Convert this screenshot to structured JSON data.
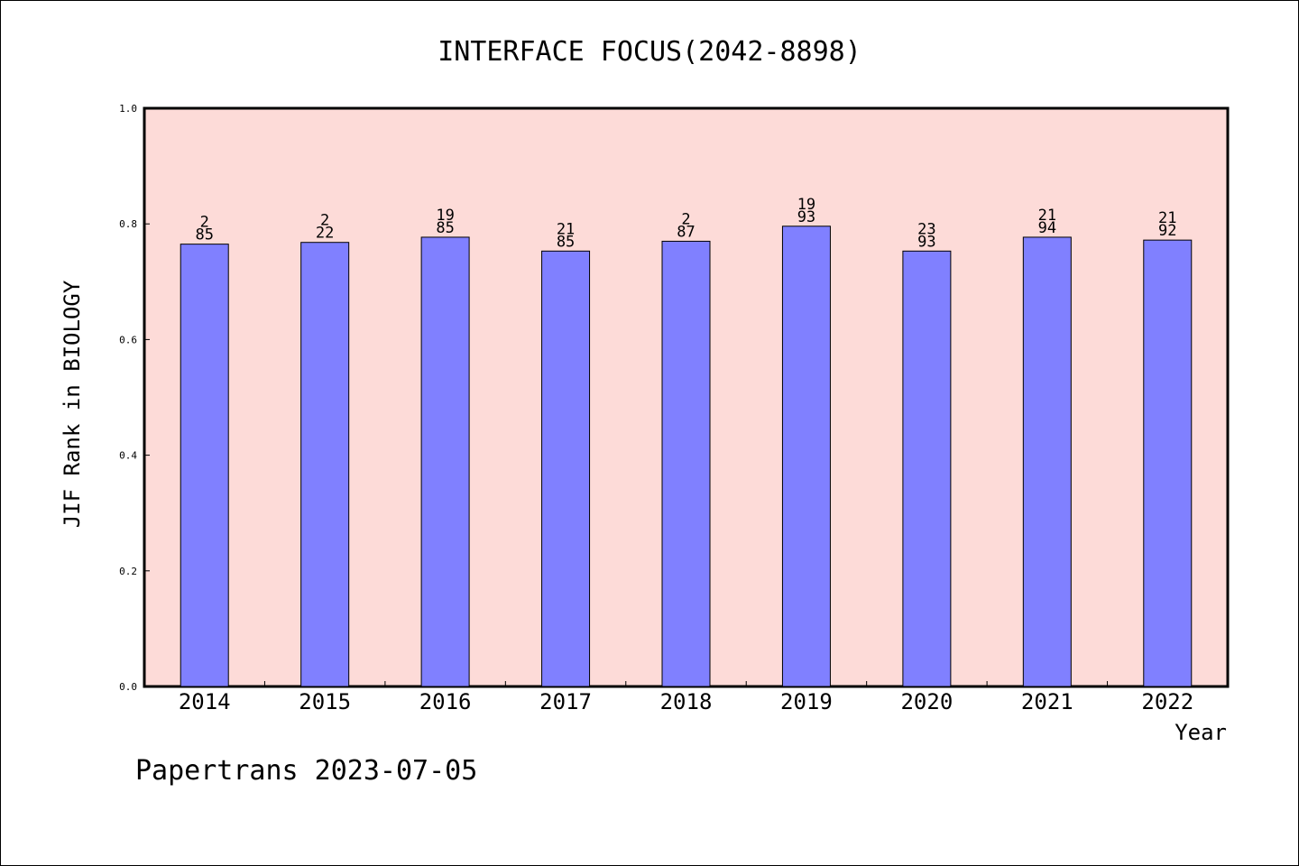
{
  "chart_data": {
    "type": "bar",
    "title": "INTERFACE FOCUS(2042-8898)",
    "xlabel": "Year",
    "ylabel": "JIF Rank in BIOLOGY",
    "ylim": [
      0,
      1.0
    ],
    "yticks": [
      "0.0",
      "0.2",
      "0.4",
      "0.6",
      "0.8",
      "1.0"
    ],
    "categories": [
      "2014",
      "2015",
      "2016",
      "2017",
      "2018",
      "2019",
      "2020",
      "2021",
      "2022"
    ],
    "values": [
      0.765,
      0.768,
      0.777,
      0.753,
      0.77,
      0.796,
      0.753,
      0.777,
      0.772
    ],
    "bar_labels": [
      {
        "top": "2",
        "bottom": "85"
      },
      {
        "top": "2",
        "bottom": "22"
      },
      {
        "top": "19",
        "bottom": "85"
      },
      {
        "top": "21",
        "bottom": "85"
      },
      {
        "top": "2",
        "bottom": "87"
      },
      {
        "top": "19",
        "bottom": "93"
      },
      {
        "top": "23",
        "bottom": "93"
      },
      {
        "top": "21",
        "bottom": "94"
      },
      {
        "top": "21",
        "bottom": "92"
      }
    ],
    "grid": false,
    "colors": {
      "plot_background": "#fddbd8",
      "bar_fill": "#8080ff",
      "bar_stroke": "#000000"
    }
  },
  "footer": {
    "credit": "Papertrans 2023-07-05"
  }
}
